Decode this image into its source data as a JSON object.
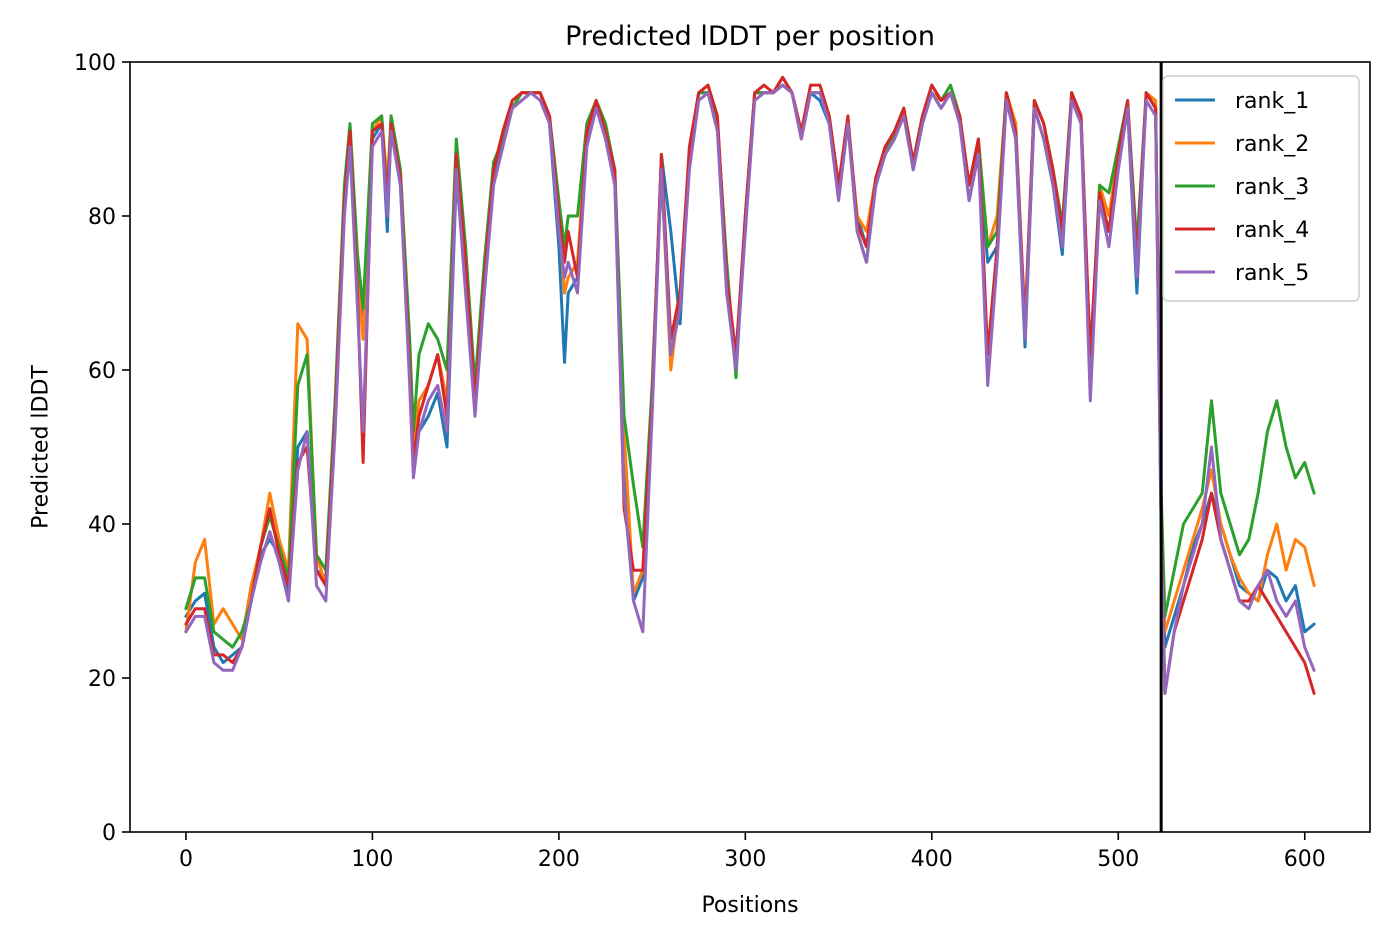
{
  "chart_data": {
    "type": "line",
    "title": "Predicted lDDT per position",
    "xlabel": "Positions",
    "ylabel": "Predicted lDDT",
    "xlim": [
      -30,
      635
    ],
    "ylim": [
      0,
      100
    ],
    "xticks": [
      0,
      100,
      200,
      300,
      400,
      500,
      600
    ],
    "yticks": [
      0,
      20,
      40,
      60,
      80,
      100
    ],
    "grid": false,
    "legend_position": "top-right",
    "vertical_line_x": 523,
    "series": [
      {
        "name": "rank_1",
        "color": "#1f77b4",
        "x": [
          0,
          5,
          10,
          15,
          20,
          25,
          30,
          35,
          40,
          45,
          50,
          55,
          60,
          65,
          70,
          75,
          80,
          85,
          88,
          92,
          95,
          100,
          105,
          108,
          110,
          115,
          120,
          122,
          125,
          130,
          135,
          140,
          145,
          150,
          155,
          160,
          165,
          170,
          175,
          180,
          185,
          190,
          195,
          200,
          203,
          205,
          210,
          215,
          220,
          225,
          230,
          235,
          240,
          245,
          250,
          255,
          260,
          265,
          270,
          275,
          280,
          285,
          290,
          295,
          300,
          305,
          310,
          315,
          320,
          325,
          330,
          335,
          340,
          345,
          350,
          355,
          360,
          365,
          370,
          375,
          380,
          385,
          390,
          395,
          400,
          405,
          410,
          415,
          420,
          425,
          430,
          435,
          440,
          445,
          450,
          455,
          460,
          465,
          470,
          475,
          480,
          485,
          490,
          495,
          500,
          505,
          510,
          515,
          520,
          523,
          525,
          530,
          535,
          540,
          545,
          550,
          555,
          560,
          565,
          570,
          575,
          580,
          585,
          590,
          595,
          600,
          605
        ],
        "values": [
          28,
          30,
          31,
          24,
          22,
          23,
          24,
          30,
          36,
          38,
          36,
          31,
          50,
          52,
          34,
          33,
          55,
          82,
          90,
          70,
          66,
          90,
          92,
          78,
          92,
          84,
          60,
          48,
          52,
          54,
          57,
          50,
          85,
          72,
          55,
          70,
          85,
          90,
          94,
          95,
          96,
          96,
          92,
          76,
          61,
          70,
          72,
          90,
          95,
          90,
          85,
          50,
          30,
          33,
          55,
          88,
          78,
          66,
          88,
          96,
          96,
          92,
          70,
          62,
          78,
          96,
          96,
          96,
          97,
          96,
          91,
          96,
          95,
          92,
          83,
          92,
          80,
          76,
          84,
          88,
          90,
          94,
          86,
          92,
          96,
          94,
          96,
          92,
          82,
          88,
          74,
          76,
          96,
          90,
          63,
          94,
          90,
          84,
          75,
          96,
          92,
          60,
          82,
          78,
          87,
          94,
          70,
          96,
          94,
          40,
          24,
          28,
          32,
          37,
          40,
          44,
          40,
          36,
          32,
          31,
          30,
          34,
          33,
          30,
          32,
          26,
          27
        ]
      },
      {
        "name": "rank_2",
        "color": "#ff7f0e",
        "x": [
          0,
          5,
          10,
          15,
          20,
          25,
          30,
          35,
          40,
          45,
          50,
          55,
          60,
          65,
          70,
          75,
          80,
          85,
          88,
          92,
          95,
          100,
          105,
          108,
          110,
          115,
          120,
          122,
          125,
          130,
          135,
          140,
          145,
          150,
          155,
          160,
          165,
          170,
          175,
          180,
          185,
          190,
          195,
          200,
          203,
          205,
          210,
          215,
          220,
          225,
          230,
          235,
          240,
          245,
          250,
          255,
          260,
          265,
          270,
          275,
          280,
          285,
          290,
          295,
          300,
          305,
          310,
          315,
          320,
          325,
          330,
          335,
          340,
          345,
          350,
          355,
          360,
          365,
          370,
          375,
          380,
          385,
          390,
          395,
          400,
          405,
          410,
          415,
          420,
          425,
          430,
          435,
          440,
          445,
          450,
          455,
          460,
          465,
          470,
          475,
          480,
          485,
          490,
          495,
          500,
          505,
          510,
          515,
          520,
          523,
          525,
          530,
          535,
          540,
          545,
          550,
          555,
          560,
          565,
          570,
          575,
          580,
          585,
          590,
          595,
          600,
          605
        ],
        "values": [
          26,
          35,
          38,
          27,
          29,
          27,
          25,
          32,
          37,
          44,
          38,
          34,
          66,
          64,
          36,
          32,
          54,
          81,
          90,
          72,
          64,
          91,
          93,
          84,
          93,
          86,
          62,
          50,
          56,
          58,
          62,
          56,
          88,
          74,
          57,
          72,
          86,
          91,
          95,
          96,
          96,
          96,
          93,
          80,
          70,
          72,
          74,
          91,
          95,
          91,
          85,
          52,
          31,
          34,
          57,
          86,
          60,
          70,
          88,
          96,
          97,
          92,
          72,
          61,
          80,
          96,
          96,
          96,
          98,
          96,
          90,
          96,
          96,
          93,
          84,
          92,
          80,
          78,
          85,
          89,
          91,
          94,
          87,
          93,
          96,
          95,
          96,
          93,
          84,
          90,
          76,
          80,
          96,
          92,
          66,
          95,
          92,
          86,
          78,
          96,
          93,
          61,
          84,
          80,
          88,
          94,
          74,
          96,
          95,
          42,
          26,
          30,
          34,
          38,
          42,
          47,
          40,
          36,
          33,
          31,
          30,
          36,
          40,
          34,
          38,
          37,
          32
        ]
      },
      {
        "name": "rank_3",
        "color": "#2ca02c",
        "x": [
          0,
          5,
          10,
          15,
          20,
          25,
          30,
          35,
          40,
          45,
          50,
          55,
          60,
          65,
          70,
          75,
          80,
          85,
          88,
          92,
          95,
          100,
          105,
          108,
          110,
          115,
          120,
          122,
          125,
          130,
          135,
          140,
          145,
          150,
          155,
          160,
          165,
          170,
          175,
          180,
          185,
          190,
          195,
          200,
          203,
          205,
          210,
          215,
          220,
          225,
          230,
          235,
          240,
          245,
          250,
          255,
          260,
          265,
          270,
          275,
          280,
          285,
          290,
          295,
          300,
          305,
          310,
          315,
          320,
          325,
          330,
          335,
          340,
          345,
          350,
          355,
          360,
          365,
          370,
          375,
          380,
          385,
          390,
          395,
          400,
          405,
          410,
          415,
          420,
          425,
          430,
          435,
          440,
          445,
          450,
          455,
          460,
          465,
          470,
          475,
          480,
          485,
          490,
          495,
          500,
          505,
          510,
          515,
          520,
          523,
          525,
          530,
          535,
          540,
          545,
          550,
          555,
          560,
          565,
          570,
          575,
          580,
          585,
          590,
          595,
          600,
          605
        ],
        "values": [
          29,
          33,
          33,
          26,
          25,
          24,
          26,
          30,
          37,
          41,
          37,
          33,
          58,
          62,
          36,
          34,
          56,
          84,
          92,
          75,
          68,
          92,
          93,
          82,
          93,
          86,
          64,
          52,
          62,
          66,
          64,
          60,
          90,
          76,
          58,
          74,
          87,
          90,
          94,
          96,
          96,
          96,
          93,
          82,
          76,
          80,
          80,
          92,
          95,
          92,
          86,
          54,
          45,
          37,
          58,
          86,
          62,
          68,
          88,
          96,
          96,
          92,
          74,
          59,
          80,
          96,
          96,
          96,
          98,
          96,
          91,
          96,
          96,
          93,
          84,
          92,
          78,
          74,
          85,
          88,
          91,
          94,
          87,
          93,
          97,
          95,
          97,
          93,
          84,
          90,
          76,
          78,
          96,
          91,
          64,
          95,
          92,
          86,
          79,
          96,
          93,
          60,
          84,
          83,
          89,
          95,
          76,
          96,
          94,
          44,
          28,
          34,
          40,
          42,
          44,
          56,
          44,
          40,
          36,
          38,
          44,
          52,
          56,
          50,
          46,
          48,
          44
        ]
      },
      {
        "name": "rank_4",
        "color": "#d62728",
        "x": [
          0,
          5,
          10,
          15,
          20,
          25,
          30,
          35,
          40,
          45,
          50,
          55,
          60,
          65,
          70,
          75,
          80,
          85,
          88,
          92,
          95,
          100,
          105,
          108,
          110,
          115,
          120,
          122,
          125,
          130,
          135,
          140,
          145,
          150,
          155,
          160,
          165,
          170,
          175,
          180,
          185,
          190,
          195,
          200,
          203,
          205,
          210,
          215,
          220,
          225,
          230,
          235,
          240,
          245,
          250,
          255,
          260,
          265,
          270,
          275,
          280,
          285,
          290,
          295,
          300,
          305,
          310,
          315,
          320,
          325,
          330,
          335,
          340,
          345,
          350,
          355,
          360,
          365,
          370,
          375,
          380,
          385,
          390,
          395,
          400,
          405,
          410,
          415,
          420,
          425,
          430,
          435,
          440,
          445,
          450,
          455,
          460,
          465,
          470,
          475,
          480,
          485,
          490,
          495,
          500,
          505,
          510,
          515,
          520,
          523,
          525,
          530,
          535,
          540,
          545,
          550,
          555,
          560,
          565,
          570,
          575,
          580,
          585,
          590,
          595,
          600,
          605
        ],
        "values": [
          27,
          29,
          29,
          23,
          23,
          22,
          24,
          30,
          37,
          42,
          36,
          32,
          48,
          50,
          34,
          32,
          54,
          82,
          91,
          70,
          48,
          91,
          92,
          82,
          92,
          85,
          60,
          48,
          54,
          58,
          62,
          54,
          88,
          74,
          56,
          72,
          86,
          91,
          95,
          96,
          96,
          96,
          93,
          80,
          74,
          78,
          72,
          91,
          95,
          91,
          86,
          42,
          34,
          34,
          56,
          88,
          64,
          70,
          89,
          96,
          97,
          93,
          72,
          62,
          80,
          96,
          97,
          96,
          98,
          96,
          91,
          97,
          97,
          93,
          84,
          93,
          79,
          76,
          85,
          89,
          91,
          94,
          87,
          93,
          97,
          95,
          96,
          93,
          84,
          90,
          62,
          76,
          96,
          91,
          66,
          95,
          92,
          86,
          78,
          96,
          93,
          62,
          83,
          78,
          88,
          95,
          74,
          96,
          94,
          40,
          18,
          26,
          30,
          34,
          38,
          44,
          38,
          34,
          30,
          30,
          32,
          30,
          28,
          26,
          24,
          22,
          18
        ]
      },
      {
        "name": "rank_5",
        "color": "#9467bd",
        "x": [
          0,
          5,
          10,
          15,
          20,
          25,
          30,
          35,
          40,
          45,
          50,
          55,
          60,
          65,
          70,
          75,
          80,
          85,
          88,
          92,
          95,
          100,
          105,
          108,
          110,
          115,
          120,
          122,
          125,
          130,
          135,
          140,
          145,
          150,
          155,
          160,
          165,
          170,
          175,
          180,
          185,
          190,
          195,
          200,
          203,
          205,
          210,
          215,
          220,
          225,
          230,
          235,
          240,
          245,
          250,
          255,
          260,
          265,
          270,
          275,
          280,
          285,
          290,
          295,
          300,
          305,
          310,
          315,
          320,
          325,
          330,
          335,
          340,
          345,
          350,
          355,
          360,
          365,
          370,
          375,
          380,
          385,
          390,
          395,
          400,
          405,
          410,
          415,
          420,
          425,
          430,
          435,
          440,
          445,
          450,
          455,
          460,
          465,
          470,
          475,
          480,
          485,
          490,
          495,
          500,
          505,
          510,
          515,
          520,
          523,
          525,
          530,
          535,
          540,
          545,
          550,
          555,
          560,
          565,
          570,
          575,
          580,
          585,
          590,
          595,
          600,
          605
        ],
        "values": [
          26,
          28,
          28,
          22,
          21,
          21,
          24,
          30,
          35,
          39,
          35,
          30,
          47,
          52,
          32,
          30,
          52,
          80,
          89,
          68,
          52,
          89,
          91,
          80,
          91,
          84,
          58,
          46,
          52,
          56,
          58,
          52,
          86,
          70,
          54,
          70,
          84,
          89,
          94,
          95,
          96,
          95,
          92,
          78,
          72,
          74,
          70,
          89,
          94,
          90,
          84,
          44,
          30,
          26,
          54,
          86,
          62,
          68,
          86,
          95,
          96,
          91,
          70,
          60,
          78,
          95,
          96,
          96,
          97,
          96,
          90,
          96,
          96,
          92,
          82,
          92,
          78,
          74,
          84,
          88,
          90,
          93,
          86,
          92,
          96,
          94,
          96,
          92,
          82,
          88,
          58,
          74,
          95,
          90,
          64,
          94,
          90,
          84,
          76,
          95,
          92,
          56,
          82,
          76,
          86,
          94,
          72,
          95,
          93,
          38,
          18,
          26,
          32,
          36,
          40,
          50,
          38,
          34,
          30,
          29,
          32,
          34,
          30,
          28,
          30,
          24,
          21
        ]
      }
    ]
  }
}
